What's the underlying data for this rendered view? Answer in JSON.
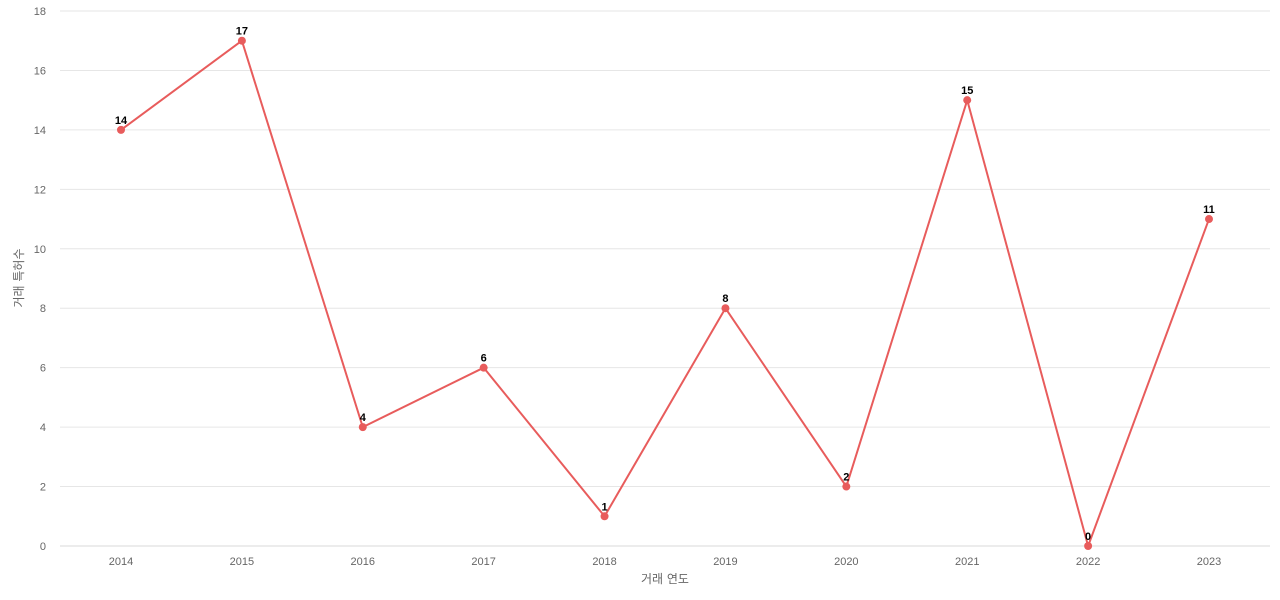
{
  "chart_data": {
    "type": "line",
    "title": "",
    "xlabel": "거래 연도",
    "ylabel": "거래 특허수",
    "categories": [
      "2014",
      "2015",
      "2016",
      "2017",
      "2018",
      "2019",
      "2020",
      "2021",
      "2022",
      "2023"
    ],
    "series": [
      {
        "values": [
          14,
          17,
          4,
          6,
          1,
          8,
          2,
          15,
          0,
          11
        ],
        "color": "#e85c5c"
      }
    ],
    "ylim": [
      0,
      18
    ],
    "yticks": [
      0,
      2,
      4,
      6,
      8,
      10,
      12,
      14,
      16,
      18
    ],
    "grid": true,
    "data_labels": true,
    "legend": "none"
  }
}
